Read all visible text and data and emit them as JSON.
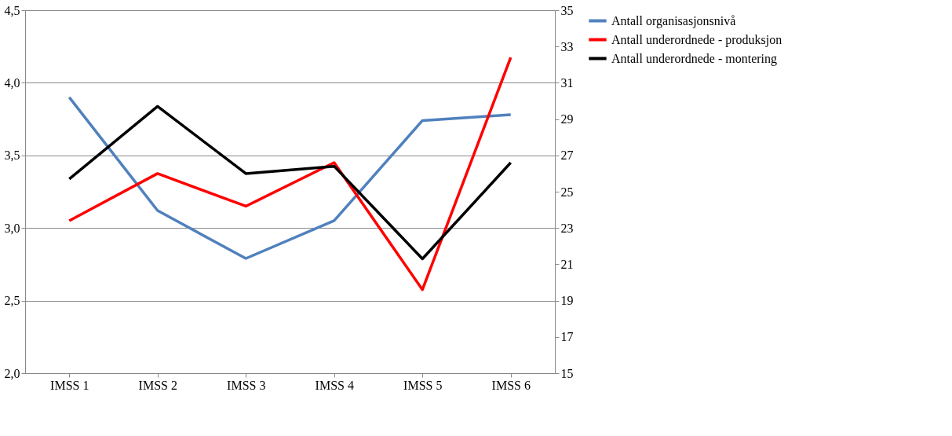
{
  "chart_data": {
    "type": "line",
    "categories": [
      "IMSS 1",
      "IMSS 2",
      "IMSS 3",
      "IMSS 4",
      "IMSS 5",
      "IMSS 6"
    ],
    "series": [
      {
        "name": "Antall organisasjonsnivå",
        "color": "#4f81bd",
        "values": [
          3.9,
          3.12,
          2.79,
          3.05,
          3.74,
          3.78
        ]
      },
      {
        "name": "Antall underordnede - produksjon",
        "color": "#ff0000",
        "axis": "y2",
        "values": [
          23.4,
          26.0,
          24.2,
          26.6,
          19.6,
          32.4
        ]
      },
      {
        "name": "Antall underordnede - montering",
        "color": "#000000",
        "axis": "y2",
        "values": [
          25.7,
          29.7,
          26.0,
          26.4,
          21.3,
          26.6
        ]
      }
    ],
    "ylim": [
      2.0,
      4.5
    ],
    "yticks": [
      {
        "value": 2.0,
        "label": "2,0"
      },
      {
        "value": 2.5,
        "label": "2,5"
      },
      {
        "value": 3.0,
        "label": "3,0"
      },
      {
        "value": 3.5,
        "label": "3,5"
      },
      {
        "value": 4.0,
        "label": "4,0"
      },
      {
        "value": 4.5,
        "label": "4,5"
      }
    ],
    "y2lim": [
      15,
      35
    ],
    "y2ticks": [
      15,
      17,
      19,
      21,
      23,
      25,
      27,
      29,
      31,
      33,
      35
    ],
    "grid": "y",
    "legend": "right",
    "marker": "none",
    "line_style": "solid"
  }
}
